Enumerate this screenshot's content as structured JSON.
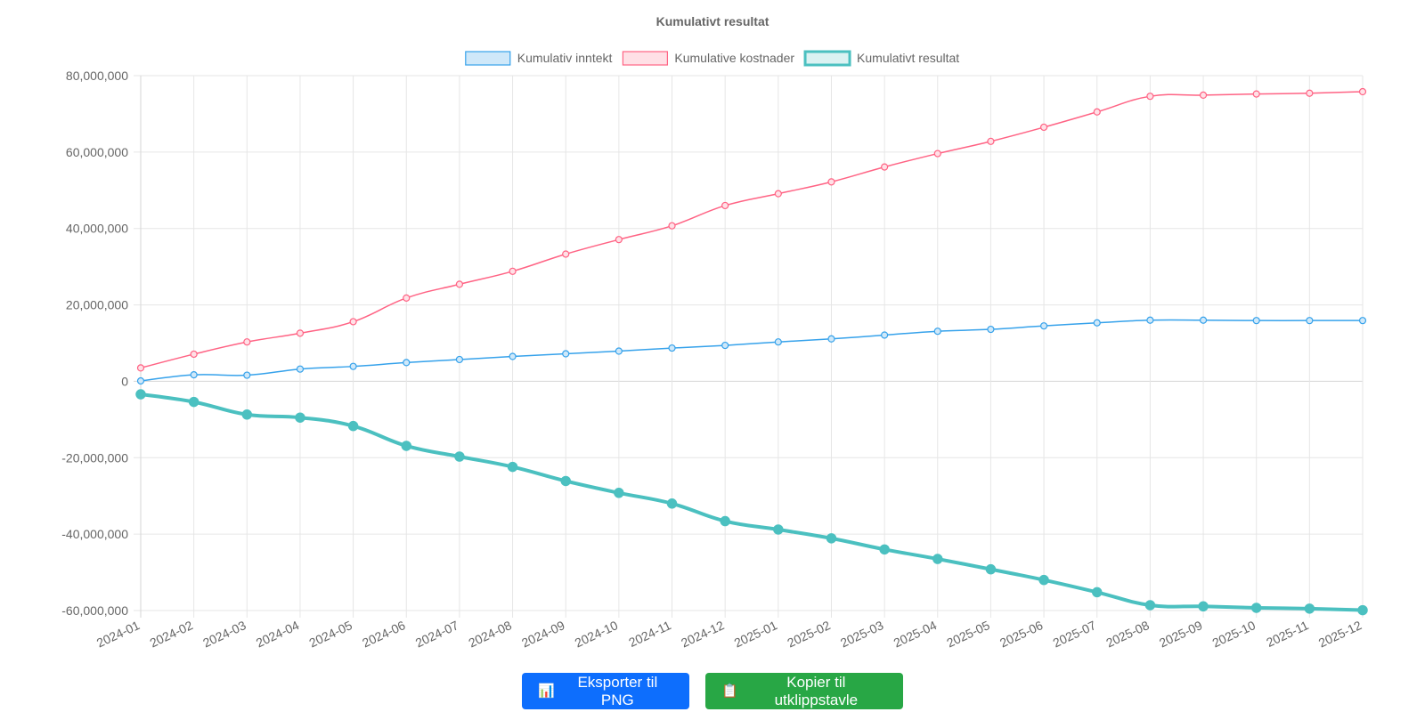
{
  "buttons": {
    "export_png": {
      "icon": "bar-chart-icon",
      "label": "Eksporter til PNG",
      "color": "#0d6efd"
    },
    "copy_clipboard": {
      "icon": "clipboard-icon",
      "label": "Kopier til utklippstavle",
      "color": "#28a745"
    }
  },
  "chart_data": {
    "type": "line",
    "title": "Kumulativt resultat",
    "xlabel": "",
    "ylabel": "",
    "ylim": [
      -60000000,
      80000000
    ],
    "y_ticks": [
      80000000,
      60000000,
      40000000,
      20000000,
      0,
      -20000000,
      -40000000,
      -60000000
    ],
    "y_tick_labels": [
      "80,000,000",
      "60,000,000",
      "40,000,000",
      "20,000,000",
      "0",
      "-20,000,000",
      "-40,000,000",
      "-60,000,000"
    ],
    "grid": true,
    "legend_position": "top",
    "categories": [
      "2024-01",
      "2024-02",
      "2024-03",
      "2024-04",
      "2024-05",
      "2024-06",
      "2024-07",
      "2024-08",
      "2024-09",
      "2024-10",
      "2024-11",
      "2024-12",
      "2025-01",
      "2025-02",
      "2025-03",
      "2025-04",
      "2025-05",
      "2025-06",
      "2025-07",
      "2025-08",
      "2025-09",
      "2025-10",
      "2025-11",
      "2025-12"
    ],
    "series": [
      {
        "name": "Kumulativ inntekt",
        "color": "#36a2eb",
        "fill": "#cfe8f9",
        "emphasis": "normal",
        "values": [
          100000,
          1700000,
          1600000,
          3200000,
          3900000,
          4900000,
          5700000,
          6500000,
          7200000,
          7900000,
          8700000,
          9400000,
          10300000,
          11100000,
          12100000,
          13100000,
          13600000,
          14500000,
          15300000,
          16000000,
          16000000,
          15900000,
          15900000,
          15900000
        ]
      },
      {
        "name": "Kumulative kostnader",
        "color": "#ff6384",
        "fill": "#ffe0e6",
        "emphasis": "normal",
        "values": [
          3500000,
          7100000,
          10300000,
          12600000,
          15600000,
          21800000,
          25400000,
          28800000,
          33300000,
          37100000,
          40700000,
          46000000,
          49100000,
          52200000,
          56100000,
          59600000,
          62800000,
          66500000,
          70500000,
          74600000,
          74900000,
          75200000,
          75400000,
          75800000
        ]
      },
      {
        "name": "Kumulativt resultat",
        "color": "#4bc0c0",
        "fill": "#dbf2f2",
        "emphasis": "bold",
        "values": [
          -3400000,
          -5400000,
          -8700000,
          -9500000,
          -11700000,
          -16900000,
          -19700000,
          -22400000,
          -26100000,
          -29200000,
          -32000000,
          -36600000,
          -38800000,
          -41100000,
          -44000000,
          -46500000,
          -49200000,
          -52000000,
          -55200000,
          -58600000,
          -58900000,
          -59300000,
          -59500000,
          -59900000
        ]
      }
    ]
  }
}
